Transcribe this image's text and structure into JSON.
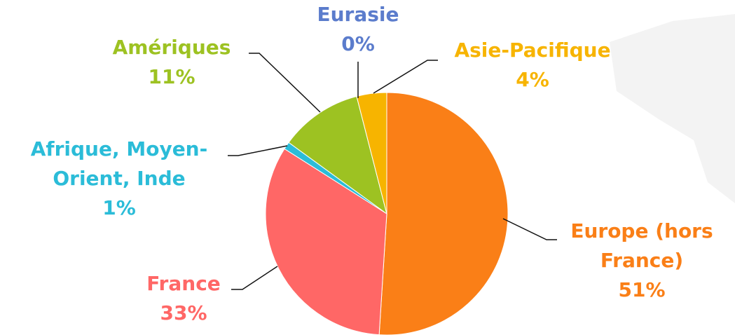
{
  "chart_data": {
    "type": "pie",
    "categories": [
      "Europe (hors France)",
      "France",
      "Afrique, Moyen-Orient, Inde",
      "Amériques",
      "Eurasie",
      "Asie-Pacifique"
    ],
    "values": [
      51,
      33,
      1,
      11,
      0,
      4
    ],
    "value_labels": [
      "51%",
      "33%",
      "1%",
      "11%",
      "0%",
      "4%"
    ],
    "colors": [
      "#fa7f17",
      "#ff6766",
      "#2bbcd8",
      "#9dc222",
      "#5b7ccc",
      "#f7b400"
    ]
  }
}
